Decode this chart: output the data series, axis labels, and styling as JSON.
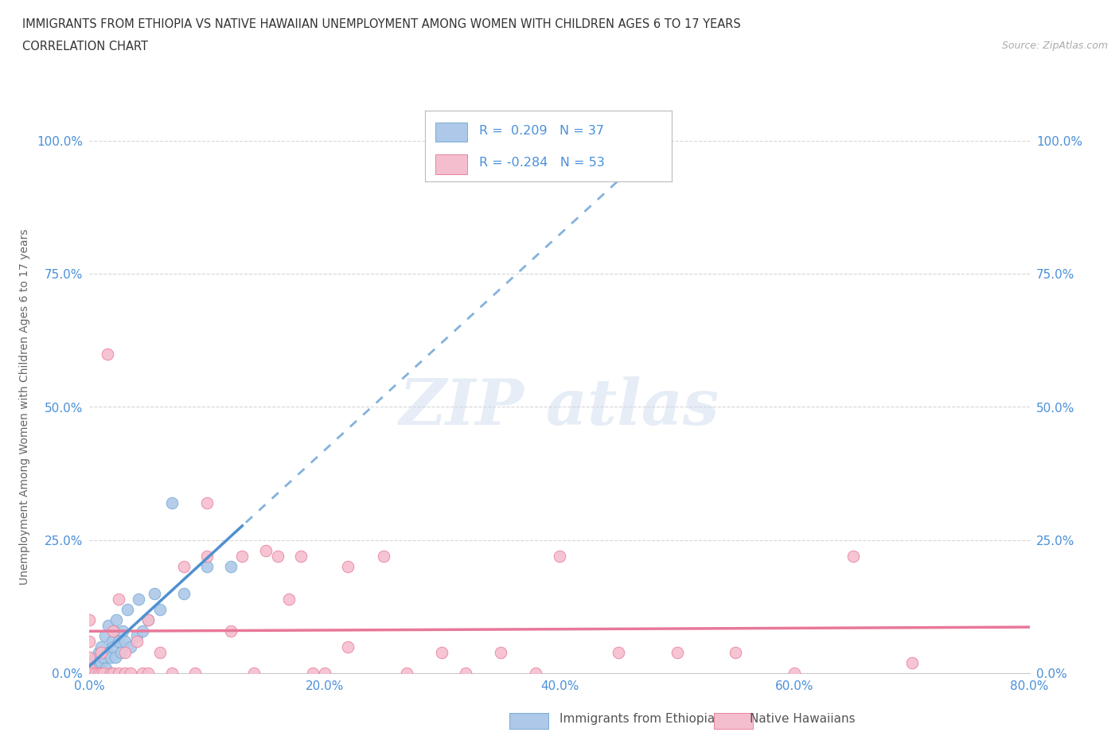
{
  "title_line1": "IMMIGRANTS FROM ETHIOPIA VS NATIVE HAWAIIAN UNEMPLOYMENT AMONG WOMEN WITH CHILDREN AGES 6 TO 17 YEARS",
  "title_line2": "CORRELATION CHART",
  "source_text": "Source: ZipAtlas.com",
  "xlabel_ticks": [
    "0.0%",
    "20.0%",
    "40.0%",
    "60.0%",
    "80.0%"
  ],
  "xlabel_vals": [
    0.0,
    0.2,
    0.4,
    0.6,
    0.8
  ],
  "ylabel_ticks": [
    "0.0%",
    "25.0%",
    "50.0%",
    "75.0%",
    "100.0%"
  ],
  "ylabel_vals": [
    0.0,
    0.25,
    0.5,
    0.75,
    1.0
  ],
  "xmin": 0.0,
  "xmax": 0.8,
  "ymin": 0.0,
  "ymax": 1.0,
  "ethiopia_color": "#adc8e8",
  "ethiopia_edge_color": "#7aadd4",
  "hawaii_color": "#f5bece",
  "hawaii_edge_color": "#e8849e",
  "trend_ethiopia_color": "#5090d0",
  "trend_hawaii_color": "#e8789a",
  "trend_ethiopia_dashed_color": "#90b8e0",
  "r_ethiopia": 0.209,
  "n_ethiopia": 37,
  "r_hawaii": -0.284,
  "n_hawaii": 53,
  "legend_text_color": "#4a90d9",
  "ethiopia_x": [
    0.0,
    0.0,
    0.002,
    0.003,
    0.005,
    0.007,
    0.008,
    0.009,
    0.01,
    0.01,
    0.012,
    0.013,
    0.014,
    0.015,
    0.016,
    0.018,
    0.019,
    0.02,
    0.021,
    0.022,
    0.023,
    0.025,
    0.027,
    0.028,
    0.03,
    0.032,
    0.035,
    0.04,
    0.042,
    0.045,
    0.05,
    0.055,
    0.06,
    0.07,
    0.08,
    0.1,
    0.12
  ],
  "ethiopia_y": [
    0.0,
    0.01,
    0.02,
    0.0,
    0.03,
    0.01,
    0.04,
    0.0,
    0.02,
    0.05,
    0.03,
    0.07,
    0.01,
    0.04,
    0.09,
    0.03,
    0.06,
    0.05,
    0.08,
    0.03,
    0.1,
    0.06,
    0.04,
    0.08,
    0.06,
    0.12,
    0.05,
    0.07,
    0.14,
    0.08,
    0.1,
    0.15,
    0.12,
    0.32,
    0.15,
    0.2,
    0.2
  ],
  "hawaii_x": [
    0.0,
    0.0,
    0.0,
    0.0,
    0.002,
    0.005,
    0.008,
    0.01,
    0.01,
    0.012,
    0.015,
    0.018,
    0.02,
    0.02,
    0.025,
    0.025,
    0.03,
    0.03,
    0.035,
    0.04,
    0.045,
    0.05,
    0.05,
    0.06,
    0.07,
    0.08,
    0.09,
    0.1,
    0.1,
    0.12,
    0.13,
    0.14,
    0.15,
    0.16,
    0.17,
    0.18,
    0.19,
    0.2,
    0.22,
    0.22,
    0.25,
    0.27,
    0.3,
    0.32,
    0.35,
    0.38,
    0.4,
    0.45,
    0.5,
    0.55,
    0.6,
    0.65,
    0.7
  ],
  "hawaii_y": [
    0.01,
    0.03,
    0.06,
    0.1,
    0.0,
    0.0,
    0.0,
    0.0,
    0.04,
    0.0,
    0.6,
    0.0,
    0.0,
    0.08,
    0.0,
    0.14,
    0.0,
    0.04,
    0.0,
    0.06,
    0.0,
    0.0,
    0.1,
    0.04,
    0.0,
    0.2,
    0.0,
    0.22,
    0.32,
    0.08,
    0.22,
    0.0,
    0.23,
    0.22,
    0.14,
    0.22,
    0.0,
    0.0,
    0.2,
    0.05,
    0.22,
    0.0,
    0.04,
    0.0,
    0.04,
    0.0,
    0.22,
    0.04,
    0.04,
    0.04,
    0.0,
    0.22,
    0.02
  ]
}
